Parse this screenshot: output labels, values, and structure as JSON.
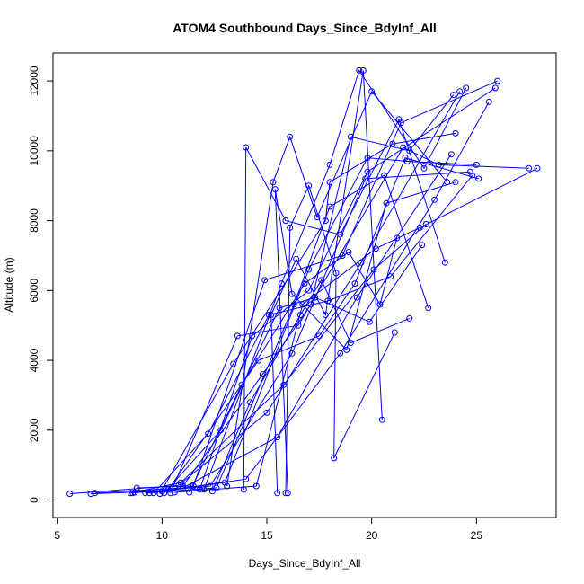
{
  "chart_data": {
    "type": "line",
    "title": "ATOM4 Southbound Days_Since_BdyInf_All",
    "xlabel": "Days_Since_BdyInf_All",
    "ylabel": "Altitude (m)",
    "xlim": [
      4.8,
      28.8
    ],
    "ylim": [
      -500,
      12800
    ],
    "xticks": [
      5,
      10,
      15,
      20,
      25
    ],
    "yticks": [
      0,
      2000,
      4000,
      6000,
      8000,
      10000,
      12000
    ],
    "grid": false,
    "legend": "none",
    "markers": "open-circle",
    "series_color": "#0000ff",
    "series": [
      {
        "x": [
          5.6,
          10.8,
          15.0,
          19.5,
          24.2
        ],
        "y": [
          180,
          420,
          2500,
          6800,
          11700
        ]
      },
      {
        "x": [
          6.6,
          10.0,
          14.0,
          18.5,
          23.0,
          25.6
        ],
        "y": [
          180,
          250,
          600,
          4200,
          8600,
          11400
        ]
      },
      {
        "x": [
          6.8,
          11.0,
          15.5,
          19.3,
          23.8
        ],
        "y": [
          200,
          350,
          1800,
          5800,
          9900
        ]
      },
      {
        "x": [
          8.5,
          10.9,
          15.8,
          20.1,
          22.6
        ],
        "y": [
          200,
          500,
          3300,
          6600,
          7900
        ]
      },
      {
        "x": [
          8.6,
          12.3,
          16.2,
          19.7,
          24.7
        ],
        "y": [
          200,
          400,
          4200,
          9200,
          9400
        ]
      },
      {
        "x": [
          8.7,
          11.8,
          14.3,
          17.0,
          19.8,
          25.9
        ],
        "y": [
          220,
          300,
          4700,
          6000,
          9400,
          11800
        ]
      },
      {
        "x": [
          8.8,
          11.5,
          14.9,
          18.6,
          21.4,
          26.0
        ],
        "y": [
          350,
          400,
          6300,
          7000,
          10800,
          12000
        ]
      },
      {
        "x": [
          9.2,
          12.6,
          16.3,
          18.0,
          20.6,
          22.7
        ],
        "y": [
          200,
          350,
          5600,
          8400,
          9300,
          5500
        ]
      },
      {
        "x": [
          9.4,
          13.0,
          17.0,
          19.8,
          21.7,
          25.0
        ],
        "y": [
          200,
          500,
          6600,
          9800,
          9700,
          9600
        ]
      },
      {
        "x": [
          9.9,
          13.4,
          17.8,
          18.0,
          21.0,
          24.0
        ],
        "y": [
          180,
          3900,
          8000,
          9100,
          10200,
          10500
        ]
      },
      {
        "x": [
          10.4,
          13.6,
          16.5,
          21.5,
          23.2,
          27.5
        ],
        "y": [
          200,
          4700,
          5000,
          10100,
          9600,
          9500
        ]
      },
      {
        "x": [
          10.6,
          14.5,
          16.7,
          20.2,
          22.3,
          27.9
        ],
        "y": [
          220,
          400,
          5600,
          7200,
          7800,
          9500
        ]
      },
      {
        "x": [
          11.0,
          14.8,
          17.1,
          19.0,
          21.8,
          23.9
        ],
        "y": [
          400,
          3600,
          5600,
          10400,
          10000,
          11600
        ]
      },
      {
        "x": [
          12.0,
          15.7,
          18.0,
          19.4,
          22.5,
          24.5
        ],
        "y": [
          300,
          6200,
          9600,
          12300,
          9500,
          11800
        ]
      },
      {
        "x": [
          13.1,
          15.3,
          16.1,
          17.4,
          20.0,
          23.6
        ],
        "y": [
          400,
          9100,
          10400,
          8100,
          11700,
          9100
        ]
      },
      {
        "x": [
          13.9,
          14.0,
          15.9,
          18.5,
          21.3,
          23.5
        ],
        "y": [
          300,
          10100,
          8000,
          7600,
          10900,
          6800
        ]
      },
      {
        "x": [
          15.5,
          15.2,
          16.4,
          17.8,
          19.6,
          20.5
        ],
        "y": [
          200,
          5300,
          6900,
          5300,
          12300,
          2300
        ]
      },
      {
        "x": [
          15.9,
          16.1,
          17.0,
          18.3,
          18.2,
          21.1
        ],
        "y": [
          200,
          7800,
          9000,
          6500,
          1200,
          4800
        ]
      },
      {
        "x": [
          16.0,
          15.4,
          16.2,
          18.8,
          20.7,
          24.0
        ],
        "y": [
          200,
          8900,
          5900,
          4300,
          8500,
          9100
        ]
      },
      {
        "x": [
          12.4,
          14.2,
          16.6,
          17.6,
          19.0,
          21.8
        ],
        "y": [
          250,
          2800,
          5300,
          6300,
          4500,
          5200
        ]
      },
      {
        "x": [
          10.1,
          12.8,
          15.6,
          17.3,
          19.9,
          22.4
        ],
        "y": [
          200,
          2000,
          5500,
          5800,
          5100,
          7300
        ]
      },
      {
        "x": [
          11.3,
          13.8,
          16.8,
          18.9,
          20.4,
          21.2
        ],
        "y": [
          220,
          3300,
          6200,
          7100,
          5600,
          7500
        ]
      },
      {
        "x": [
          9.6,
          12.2,
          15.1,
          17.9,
          20.9,
          24.8
        ],
        "y": [
          200,
          1900,
          5300,
          5700,
          6400,
          9300
        ]
      },
      {
        "x": [
          10.3,
          14.6,
          17.5,
          19.2,
          21.6,
          25.1
        ],
        "y": [
          300,
          4000,
          4700,
          6200,
          9800,
          9200
        ]
      }
    ]
  }
}
